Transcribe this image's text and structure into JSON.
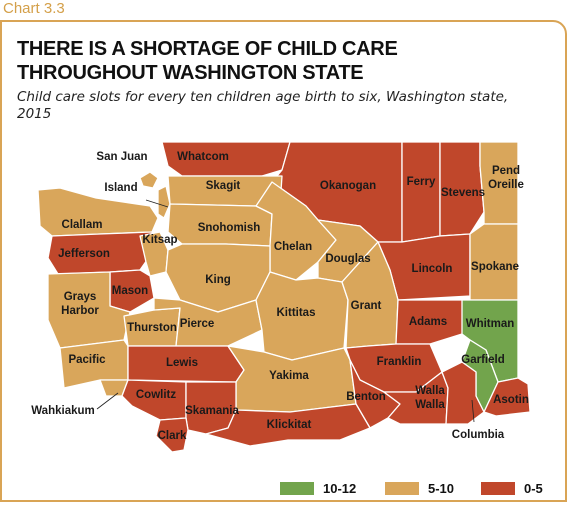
{
  "chart_label": "Chart 3.3",
  "title": "THERE IS A SHORTAGE OF CHILD CARE THROUGHOUT WASHINGTON STATE",
  "subtitle": "Child care slots for every ten children age birth to six, Washington state, 2015",
  "colors": {
    "0-5": "#c0472b",
    "5-10": "#d9a65b",
    "10-12": "#72a44c"
  },
  "legend": [
    {
      "label": "10-12",
      "color": "#72a44c"
    },
    {
      "label": "5-10",
      "color": "#d9a65b"
    },
    {
      "label": "0-5",
      "color": "#c0472b"
    }
  ],
  "counties": [
    {
      "name": "San Juan",
      "category": "5-10"
    },
    {
      "name": "Whatcom",
      "category": "0-5"
    },
    {
      "name": "Okanogan",
      "category": "0-5"
    },
    {
      "name": "Ferry",
      "category": "0-5"
    },
    {
      "name": "Stevens",
      "category": "0-5"
    },
    {
      "name": "Pend Oreille",
      "category": "5-10"
    },
    {
      "name": "Island",
      "category": "5-10"
    },
    {
      "name": "Skagit",
      "category": "5-10"
    },
    {
      "name": "Clallam",
      "category": "5-10"
    },
    {
      "name": "Jefferson",
      "category": "0-5"
    },
    {
      "name": "Snohomish",
      "category": "5-10"
    },
    {
      "name": "Chelan",
      "category": "5-10"
    },
    {
      "name": "Douglas",
      "category": "5-10"
    },
    {
      "name": "Lincoln",
      "category": "0-5"
    },
    {
      "name": "Spokane",
      "category": "5-10"
    },
    {
      "name": "Kitsap",
      "category": "5-10"
    },
    {
      "name": "Mason",
      "category": "0-5"
    },
    {
      "name": "King",
      "category": "5-10"
    },
    {
      "name": "Grays Harbor",
      "category": "5-10"
    },
    {
      "name": "Thurston",
      "category": "5-10"
    },
    {
      "name": "Pierce",
      "category": "5-10"
    },
    {
      "name": "Kittitas",
      "category": "5-10"
    },
    {
      "name": "Grant",
      "category": "5-10"
    },
    {
      "name": "Adams",
      "category": "0-5"
    },
    {
      "name": "Whitman",
      "category": "10-12"
    },
    {
      "name": "Pacific",
      "category": "5-10"
    },
    {
      "name": "Lewis",
      "category": "0-5"
    },
    {
      "name": "Yakima",
      "category": "5-10"
    },
    {
      "name": "Franklin",
      "category": "0-5"
    },
    {
      "name": "Garfield",
      "category": "10-12"
    },
    {
      "name": "Wahkiakum",
      "category": "5-10"
    },
    {
      "name": "Cowlitz",
      "category": "0-5"
    },
    {
      "name": "Skamania",
      "category": "0-5"
    },
    {
      "name": "Benton",
      "category": "0-5"
    },
    {
      "name": "Walla Walla",
      "category": "0-5"
    },
    {
      "name": "Asotin",
      "category": "0-5"
    },
    {
      "name": "Columbia",
      "category": "0-5"
    },
    {
      "name": "Clark",
      "category": "0-5"
    },
    {
      "name": "Klickitat",
      "category": "0-5"
    }
  ]
}
